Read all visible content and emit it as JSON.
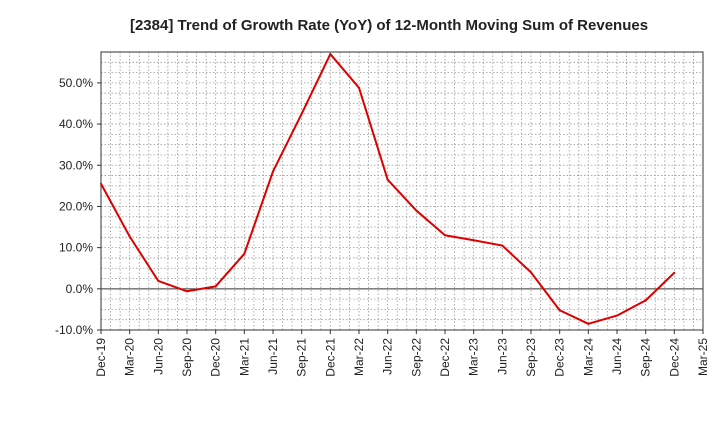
{
  "chart_data": {
    "type": "line",
    "title": "[2384]  Trend of Growth Rate (YoY) of 12-Month Moving Sum of Revenues",
    "xlabel": "",
    "ylabel": "",
    "y_unit": "%",
    "ylim": [
      -10,
      57.5
    ],
    "yticks": [
      -10,
      0,
      10,
      20,
      30,
      40,
      50
    ],
    "ytick_labels": [
      "-10.0%",
      "0.0%",
      "10.0%",
      "20.0%",
      "30.0%",
      "40.0%",
      "50.0%"
    ],
    "x_tick_labels": [
      "Dec-19",
      "Mar-20",
      "Jun-20",
      "Sep-20",
      "Dec-20",
      "Mar-21",
      "Jun-21",
      "Sep-21",
      "Dec-21",
      "Mar-22",
      "Jun-22",
      "Sep-22",
      "Dec-22",
      "Mar-23",
      "Jun-23",
      "Sep-23",
      "Dec-23",
      "Mar-24",
      "Jun-24",
      "Sep-24",
      "Dec-24",
      "Mar-25"
    ],
    "grid": true,
    "series": [
      {
        "color": "#dd0000",
        "values": [
          25.5,
          12.7,
          1.9,
          -0.6,
          0.6,
          8.5,
          28.5,
          42.5,
          57.0,
          48.8,
          26.5,
          19.0,
          13.0,
          11.8,
          10.5,
          4.0,
          -5.2,
          -8.5,
          -6.5,
          -2.8,
          3.9
        ]
      }
    ]
  }
}
